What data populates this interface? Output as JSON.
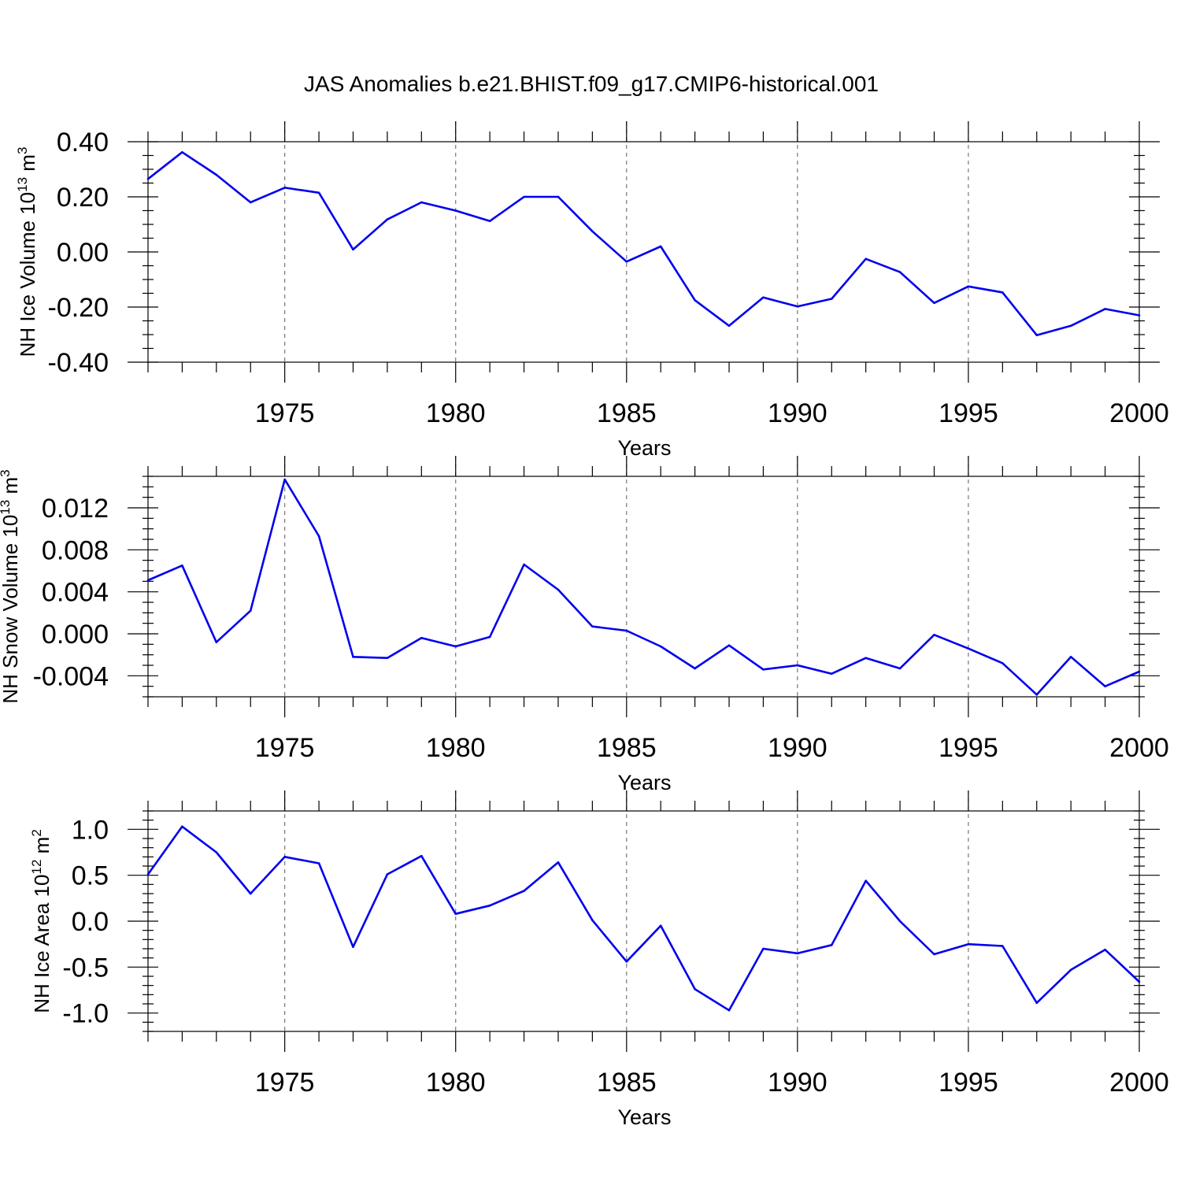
{
  "title": "JAS Anomalies b.e21.BHIST.f09_g17.CMIP6-historical.001",
  "colors": {
    "line": "#0000ee",
    "grid": "#777777",
    "axis": "#000000"
  },
  "chart_data": [
    {
      "type": "line",
      "xlabel": "Years",
      "ylabel_main": "NH Ice Volume 10",
      "ylabel_sup": "13",
      "ylabel_unit": " m",
      "ylabel_unit_sup": "3",
      "xlim": [
        1971,
        2000
      ],
      "ylim": [
        -0.4,
        0.4
      ],
      "xticks": [
        1975,
        1980,
        1985,
        1990,
        1995,
        2000
      ],
      "xtick_labels": [
        "1975",
        "1980",
        "1985",
        "1990",
        "1995",
        "2000"
      ],
      "yticks": [
        0.4,
        0.2,
        0.0,
        -0.2,
        -0.4
      ],
      "ytick_labels": [
        "0.40",
        "0.20",
        "0.00",
        "-0.20",
        "-0.40"
      ],
      "ytick_minor_step": 0.05,
      "grid": "vertical-dashed",
      "x": [
        1971,
        1972,
        1973,
        1974,
        1975,
        1976,
        1977,
        1978,
        1979,
        1980,
        1981,
        1982,
        1983,
        1984,
        1985,
        1986,
        1987,
        1988,
        1989,
        1990,
        1991,
        1992,
        1993,
        1994,
        1995,
        1996,
        1997,
        1998,
        1999,
        2000
      ],
      "y": [
        0.265,
        0.362,
        0.28,
        0.18,
        0.233,
        0.215,
        0.009,
        0.118,
        0.18,
        0.15,
        0.112,
        0.2,
        0.2,
        0.075,
        -0.035,
        0.02,
        -0.175,
        -0.268,
        -0.165,
        -0.198,
        -0.17,
        -0.025,
        -0.073,
        -0.185,
        -0.125,
        -0.147,
        -0.302,
        -0.268,
        -0.207,
        -0.23
      ]
    },
    {
      "type": "line",
      "xlabel": "Years",
      "ylabel_main": "NH Snow Volume 10",
      "ylabel_sup": "13",
      "ylabel_unit": " m",
      "ylabel_unit_sup": "3",
      "xlim": [
        1971,
        2000
      ],
      "ylim": [
        -0.006,
        0.015
      ],
      "xticks": [
        1975,
        1980,
        1985,
        1990,
        1995,
        2000
      ],
      "xtick_labels": [
        "1975",
        "1980",
        "1985",
        "1990",
        "1995",
        "2000"
      ],
      "yticks": [
        0.012,
        0.008,
        0.004,
        0.0,
        -0.004
      ],
      "ytick_labels": [
        "0.012",
        "0.008",
        "0.004",
        "0.000",
        "-0.004"
      ],
      "ytick_minor_step": 0.001,
      "grid": "vertical-dashed",
      "x": [
        1971,
        1972,
        1973,
        1974,
        1975,
        1976,
        1977,
        1978,
        1979,
        1980,
        1981,
        1982,
        1983,
        1984,
        1985,
        1986,
        1987,
        1988,
        1989,
        1990,
        1991,
        1992,
        1993,
        1994,
        1995,
        1996,
        1997,
        1998,
        1999,
        2000
      ],
      "y": [
        0.0051,
        0.0065,
        -0.0008,
        0.0022,
        0.0147,
        0.0093,
        -0.0022,
        -0.0023,
        -0.0004,
        -0.0012,
        -0.0003,
        0.0066,
        0.0042,
        0.0007,
        0.0003,
        -0.0012,
        -0.0033,
        -0.0011,
        -0.0034,
        -0.003,
        -0.0038,
        -0.0023,
        -0.0033,
        -0.0001,
        -0.0014,
        -0.0028,
        -0.0058,
        -0.0022,
        -0.005,
        -0.0036
      ]
    },
    {
      "type": "line",
      "xlabel": "Years",
      "ylabel_main": "NH Ice Area 10",
      "ylabel_sup": "12",
      "ylabel_unit": " m",
      "ylabel_unit_sup": "2",
      "xlim": [
        1971,
        2000
      ],
      "ylim": [
        -1.2,
        1.2
      ],
      "xticks": [
        1975,
        1980,
        1985,
        1990,
        1995,
        2000
      ],
      "xtick_labels": [
        "1975",
        "1980",
        "1985",
        "1990",
        "1995",
        "2000"
      ],
      "yticks": [
        1.0,
        0.5,
        0.0,
        -0.5,
        -1.0
      ],
      "ytick_labels": [
        "1.0",
        "0.5",
        "0.0",
        "-0.5",
        "-1.0"
      ],
      "ytick_minor_step": 0.1,
      "grid": "vertical-dashed",
      "x": [
        1971,
        1972,
        1973,
        1974,
        1975,
        1976,
        1977,
        1978,
        1979,
        1980,
        1981,
        1982,
        1983,
        1984,
        1985,
        1986,
        1987,
        1988,
        1989,
        1990,
        1991,
        1992,
        1993,
        1994,
        1995,
        1996,
        1997,
        1998,
        1999,
        2000
      ],
      "y": [
        0.51,
        1.03,
        0.75,
        0.3,
        0.7,
        0.63,
        -0.28,
        0.51,
        0.71,
        0.08,
        0.17,
        0.33,
        0.64,
        0.01,
        -0.44,
        -0.05,
        -0.74,
        -0.97,
        -0.3,
        -0.35,
        -0.26,
        0.44,
        0.0,
        -0.36,
        -0.25,
        -0.27,
        -0.89,
        -0.53,
        -0.31,
        -0.66
      ]
    }
  ]
}
